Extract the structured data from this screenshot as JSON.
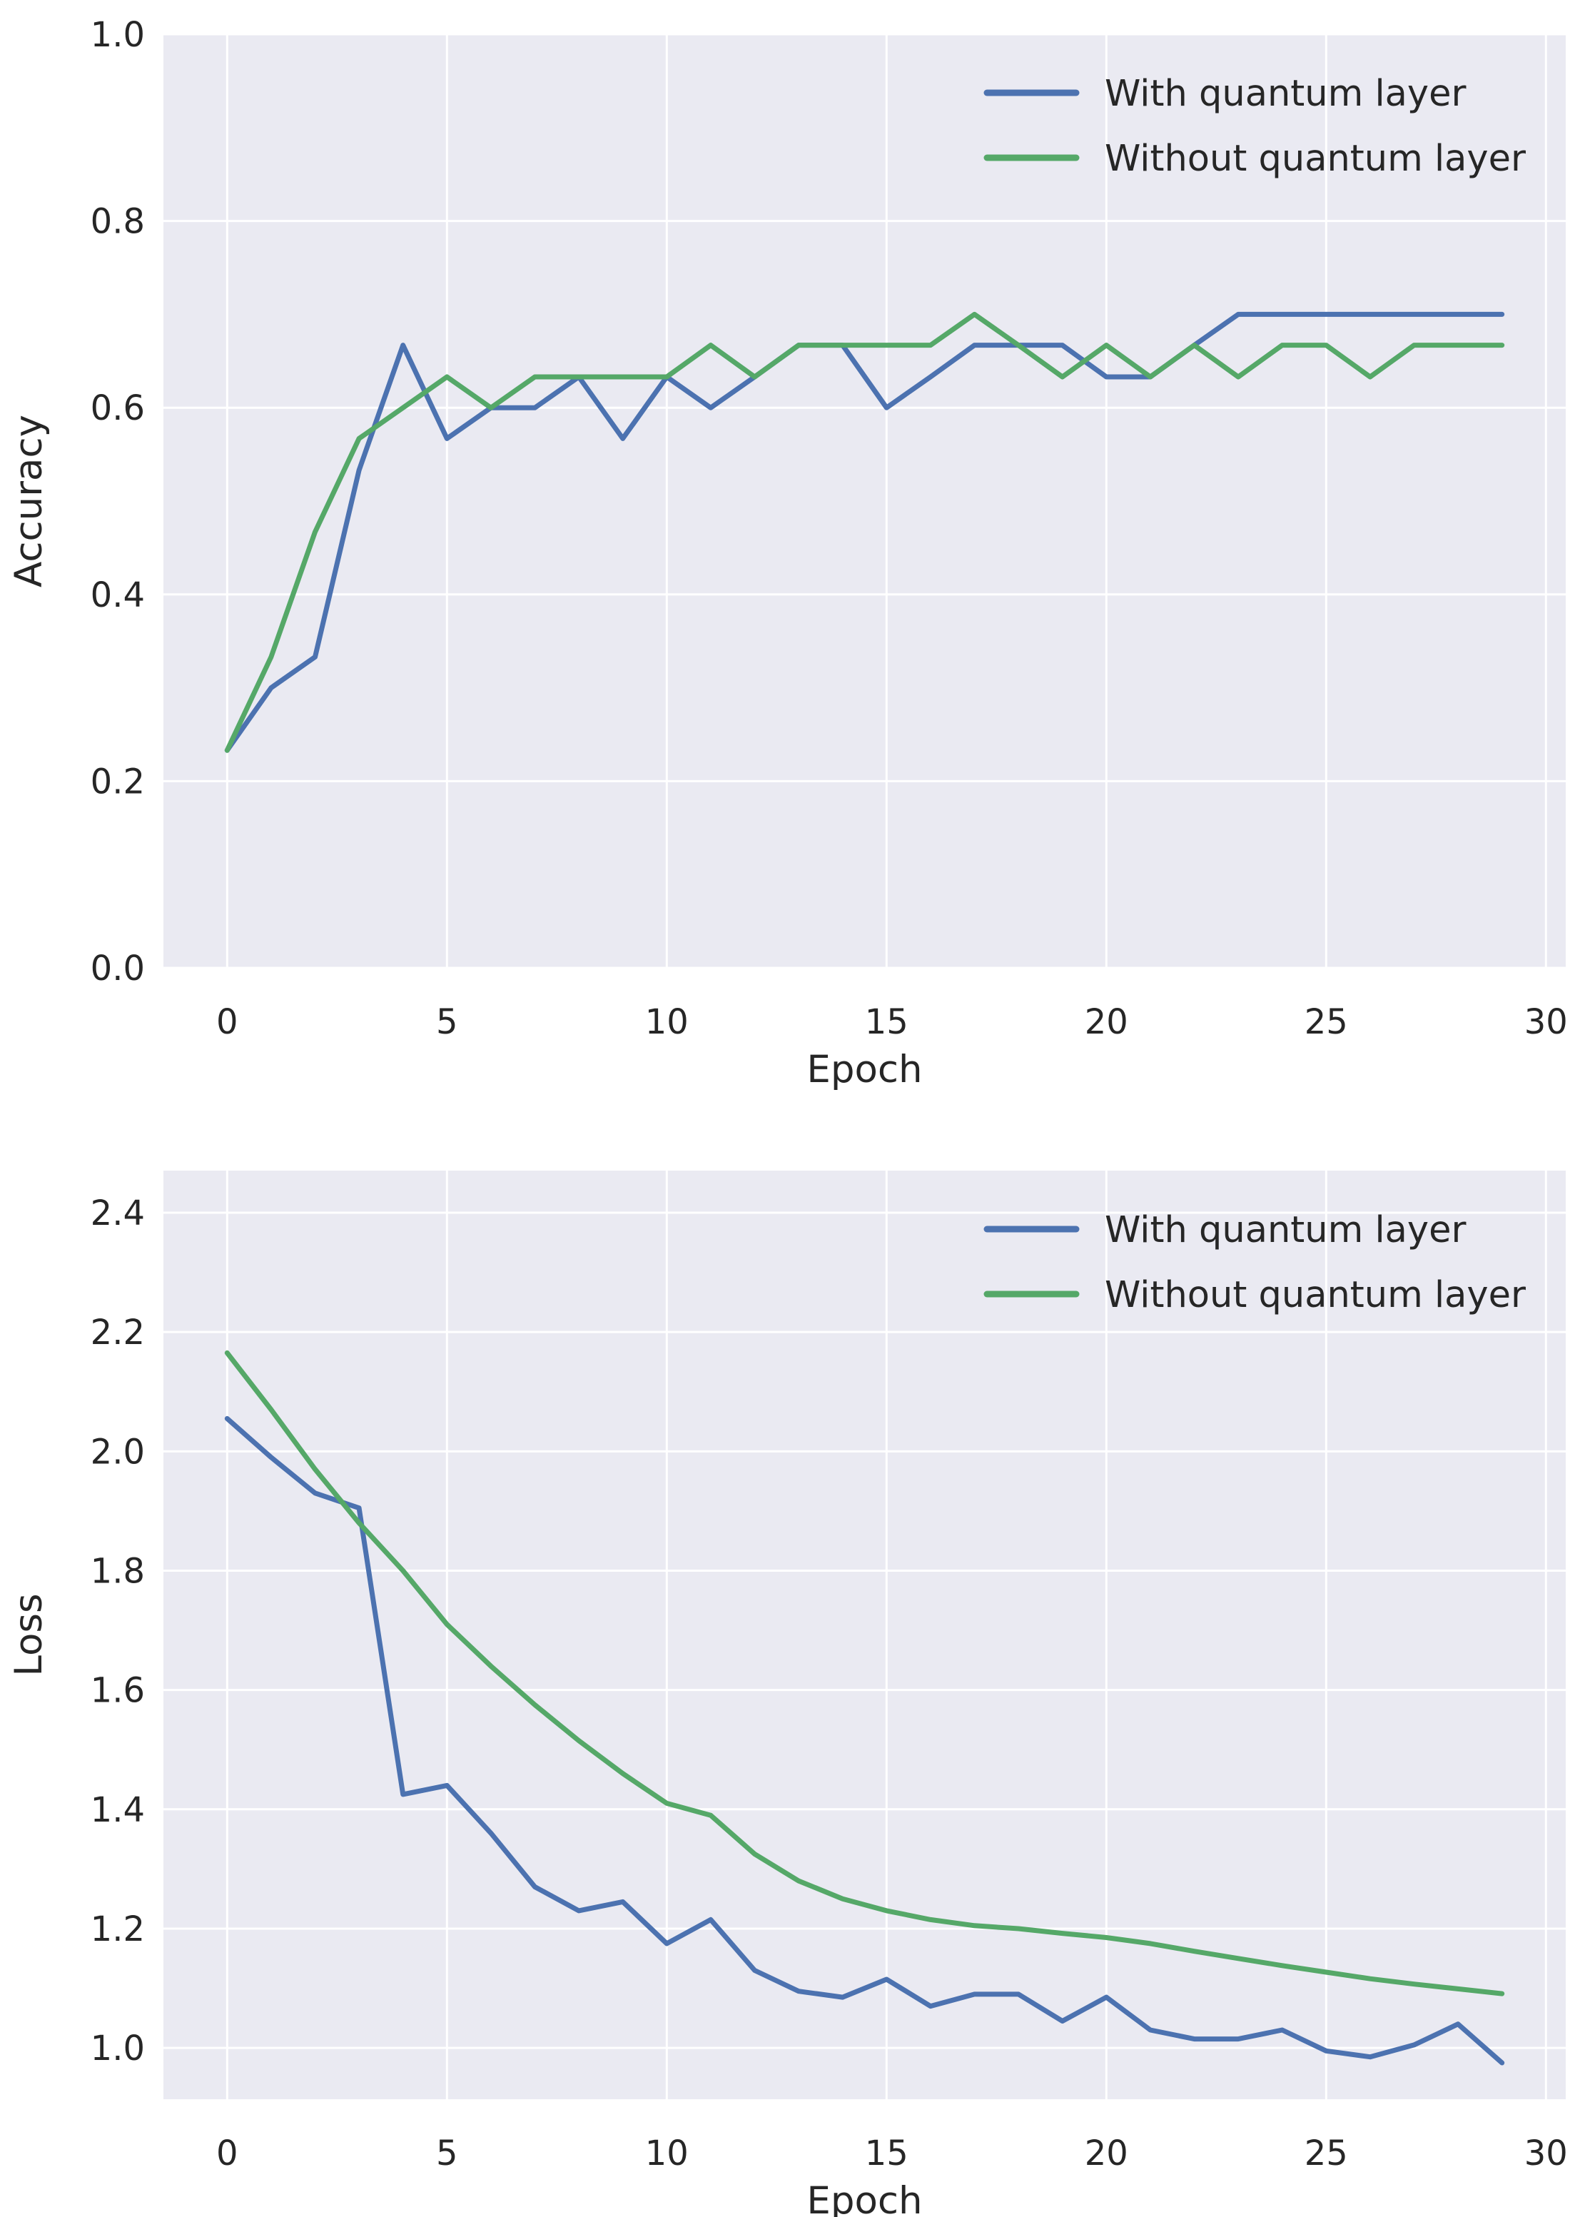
{
  "figure": {
    "background": "#ffffff",
    "plot_background": "#eaeaf2",
    "grid_color": "#ffffff",
    "text_color": "#262626"
  },
  "legend_labels": [
    "With quantum layer",
    "Without quantum layer"
  ],
  "series_colors": {
    "with_quantum": "#4c72b0",
    "without_quantum": "#55a868"
  },
  "chart_data": [
    {
      "type": "line",
      "title": "",
      "xlabel": "Epoch",
      "ylabel": "Accuracy",
      "grid": true,
      "legend_position": "upper right",
      "xlim": [
        -1.45,
        30.45
      ],
      "ylim": [
        0.0,
        1.0
      ],
      "x": [
        0,
        1,
        2,
        3,
        4,
        5,
        6,
        7,
        8,
        9,
        10,
        11,
        12,
        13,
        14,
        15,
        16,
        17,
        18,
        19,
        20,
        21,
        22,
        23,
        24,
        25,
        26,
        27,
        28,
        29
      ],
      "xticks": {
        "values": [
          0,
          5,
          10,
          15,
          20,
          25,
          30
        ],
        "labels": [
          "0",
          "5",
          "10",
          "15",
          "20",
          "25",
          "30"
        ]
      },
      "yticks": {
        "values": [
          0.0,
          0.2,
          0.4,
          0.6,
          0.8,
          1.0
        ],
        "labels": [
          "0.0",
          "0.2",
          "0.4",
          "0.6",
          "0.8",
          "1.0"
        ]
      },
      "series": [
        {
          "name": "With quantum layer",
          "color": "#4c72b0",
          "values": [
            0.233,
            0.3,
            0.333,
            0.533,
            0.667,
            0.567,
            0.6,
            0.6,
            0.633,
            0.567,
            0.633,
            0.6,
            0.633,
            0.667,
            0.667,
            0.6,
            0.633,
            0.667,
            0.667,
            0.667,
            0.633,
            0.633,
            0.667,
            0.7,
            0.7,
            0.7,
            0.7,
            0.7,
            0.7,
            0.7
          ]
        },
        {
          "name": "Without quantum layer",
          "color": "#55a868",
          "values": [
            0.233,
            0.333,
            0.467,
            0.567,
            0.6,
            0.633,
            0.6,
            0.633,
            0.633,
            0.633,
            0.633,
            0.667,
            0.633,
            0.667,
            0.667,
            0.667,
            0.667,
            0.7,
            0.667,
            0.633,
            0.667,
            0.633,
            0.667,
            0.633,
            0.667,
            0.667,
            0.633,
            0.667,
            0.667,
            0.667
          ]
        }
      ]
    },
    {
      "type": "line",
      "title": "",
      "xlabel": "Epoch",
      "ylabel": "Loss",
      "grid": true,
      "legend_position": "upper right",
      "xlim": [
        -1.45,
        30.45
      ],
      "ylim": [
        0.914,
        2.4706
      ],
      "x": [
        0,
        1,
        2,
        3,
        4,
        5,
        6,
        7,
        8,
        9,
        10,
        11,
        12,
        13,
        14,
        15,
        16,
        17,
        18,
        19,
        20,
        21,
        22,
        23,
        24,
        25,
        26,
        27,
        28,
        29
      ],
      "xticks": {
        "values": [
          0,
          5,
          10,
          15,
          20,
          25,
          30
        ],
        "labels": [
          "0",
          "5",
          "10",
          "15",
          "20",
          "25",
          "30"
        ]
      },
      "yticks": {
        "values": [
          1.0,
          1.2,
          1.4,
          1.6,
          1.8,
          2.0,
          2.2,
          2.4
        ],
        "labels": [
          "1.0",
          "1.2",
          "1.4",
          "1.6",
          "1.8",
          "2.0",
          "2.2",
          "2.4"
        ]
      },
      "series": [
        {
          "name": "With quantum layer",
          "color": "#4c72b0",
          "values": [
            2.055,
            1.99,
            1.93,
            1.905,
            1.425,
            1.44,
            1.36,
            1.27,
            1.23,
            1.245,
            1.175,
            1.215,
            1.13,
            1.095,
            1.085,
            1.115,
            1.07,
            1.09,
            1.09,
            1.045,
            1.085,
            1.03,
            1.015,
            1.015,
            1.03,
            0.995,
            0.985,
            1.005,
            1.04,
            0.975
          ]
        },
        {
          "name": "Without quantum layer",
          "color": "#55a868",
          "values": [
            2.165,
            2.07,
            1.97,
            1.88,
            1.8,
            1.71,
            1.64,
            1.575,
            1.515,
            1.46,
            1.41,
            1.39,
            1.325,
            1.28,
            1.25,
            1.23,
            1.215,
            1.205,
            1.2,
            1.192,
            1.185,
            1.175,
            1.162,
            1.15,
            1.138,
            1.127,
            1.116,
            1.107,
            1.099,
            1.091
          ]
        }
      ]
    }
  ]
}
